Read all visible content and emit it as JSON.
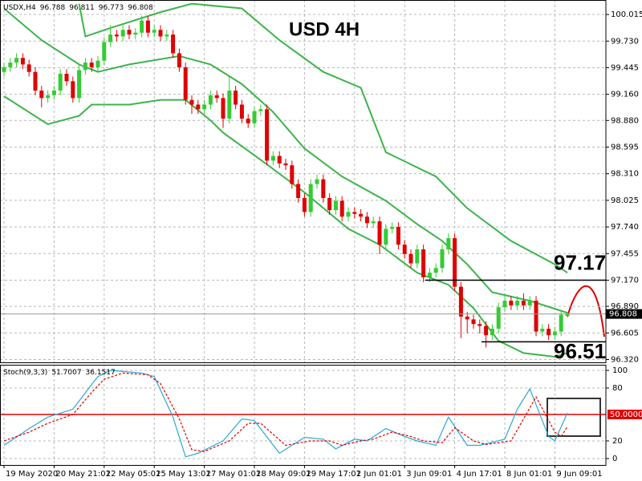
{
  "chart_data": [
    {
      "type": "candlestick",
      "title": "USD 4H",
      "symbol": "USDX,H4",
      "open": [
        99.4,
        99.45,
        99.5,
        99.55,
        99.48,
        99.4,
        99.2,
        99.12,
        99.15,
        99.2,
        99.38,
        99.3,
        99.12,
        99.42,
        99.5,
        99.45,
        99.52,
        99.72,
        99.8,
        99.78,
        99.85,
        99.8,
        99.82,
        99.95,
        99.82,
        99.85,
        99.78,
        99.8,
        99.6,
        99.45,
        99.1,
        99.05,
        99.0,
        99.05,
        99.15,
        99.12,
        98.9,
        99.2,
        99.05,
        98.9,
        98.85,
        98.98,
        99.0,
        98.45,
        98.5,
        98.42,
        98.4,
        98.2,
        98.05,
        97.9,
        98.2,
        98.25,
        98.05,
        97.92,
        98.02,
        97.85,
        97.9,
        97.88,
        97.85,
        97.78,
        97.8,
        97.55,
        97.72,
        97.74,
        97.55,
        97.45,
        97.35,
        97.5,
        97.2,
        97.25,
        97.3,
        97.5,
        97.62,
        97.1,
        96.78,
        96.75,
        96.7,
        96.68,
        96.58,
        96.65,
        96.88,
        96.95,
        96.9,
        96.95,
        96.9,
        96.95,
        96.62,
        96.65,
        96.58,
        96.62,
        96.788
      ],
      "high": [
        99.5,
        99.55,
        99.6,
        99.6,
        99.53,
        99.45,
        99.25,
        99.2,
        99.25,
        99.43,
        99.43,
        99.35,
        99.47,
        99.55,
        99.55,
        99.57,
        99.77,
        99.9,
        99.85,
        99.9,
        99.9,
        99.87,
        100.0,
        100.0,
        99.9,
        99.9,
        99.85,
        99.85,
        99.65,
        99.5,
        99.15,
        99.1,
        99.1,
        99.2,
        99.2,
        99.17,
        99.35,
        99.25,
        99.1,
        98.95,
        99.03,
        99.05,
        99.05,
        98.55,
        98.55,
        98.47,
        98.45,
        98.25,
        98.1,
        98.25,
        98.3,
        98.3,
        98.1,
        98.07,
        98.07,
        97.95,
        97.95,
        97.93,
        97.9,
        97.85,
        97.85,
        97.77,
        97.79,
        97.79,
        97.6,
        97.5,
        97.55,
        97.55,
        97.3,
        97.35,
        97.55,
        97.67,
        97.67,
        97.15,
        96.83,
        96.8,
        96.75,
        96.73,
        96.7,
        96.93,
        97.03,
        97.0,
        97.0,
        97.03,
        97.0,
        97.0,
        96.7,
        96.7,
        96.67,
        96.85,
        96.811
      ],
      "low": [
        99.35,
        99.4,
        99.45,
        99.43,
        99.35,
        99.15,
        99.02,
        99.07,
        99.1,
        99.15,
        99.25,
        99.07,
        99.07,
        99.37,
        99.4,
        99.4,
        99.47,
        99.67,
        99.73,
        99.73,
        99.75,
        99.75,
        99.77,
        99.77,
        99.77,
        99.73,
        99.73,
        99.55,
        99.4,
        99.05,
        98.95,
        98.95,
        98.95,
        99.0,
        99.07,
        98.8,
        98.85,
        99.0,
        98.85,
        98.8,
        98.8,
        98.93,
        98.4,
        98.4,
        98.37,
        98.35,
        98.15,
        98.0,
        97.85,
        97.85,
        98.15,
        98.0,
        97.87,
        97.87,
        97.8,
        97.8,
        97.83,
        97.8,
        97.73,
        97.73,
        97.45,
        97.5,
        97.67,
        97.5,
        97.4,
        97.3,
        97.3,
        97.15,
        97.15,
        97.2,
        97.25,
        97.45,
        97.05,
        96.55,
        96.6,
        96.65,
        96.6,
        96.45,
        96.53,
        96.6,
        96.83,
        96.85,
        96.85,
        96.85,
        96.85,
        96.57,
        96.57,
        96.53,
        96.53,
        96.57,
        96.773
      ],
      "close": [
        99.45,
        99.5,
        99.55,
        99.48,
        99.4,
        99.2,
        99.12,
        99.15,
        99.2,
        99.38,
        99.3,
        99.12,
        99.42,
        99.5,
        99.45,
        99.52,
        99.72,
        99.8,
        99.78,
        99.85,
        99.8,
        99.82,
        99.95,
        99.82,
        99.85,
        99.78,
        99.8,
        99.6,
        99.45,
        99.1,
        99.05,
        99.0,
        99.05,
        99.15,
        99.12,
        98.9,
        99.2,
        99.05,
        98.9,
        98.85,
        98.98,
        99.0,
        98.45,
        98.5,
        98.42,
        98.4,
        98.2,
        98.05,
        97.9,
        98.2,
        98.25,
        98.05,
        97.92,
        98.02,
        97.85,
        97.9,
        97.88,
        97.85,
        97.78,
        97.8,
        97.55,
        97.72,
        97.74,
        97.55,
        97.45,
        97.35,
        97.5,
        97.2,
        97.25,
        97.3,
        97.5,
        97.62,
        97.1,
        96.78,
        96.75,
        96.7,
        96.68,
        96.58,
        96.65,
        96.88,
        96.95,
        96.9,
        96.95,
        96.9,
        96.95,
        96.62,
        96.65,
        96.58,
        96.62,
        96.8,
        96.808
      ],
      "up_color": "#33cc33",
      "down_color": "#e00000",
      "bands": [
        {
          "color": "#3cb44b",
          "x": [
            12,
            13,
            17,
            25,
            30,
            38,
            44,
            51,
            57,
            61,
            69,
            74,
            81,
            88,
            90
          ],
          "values": [
            100.13,
            99.78,
            99.87,
            100.04,
            100.13,
            100.08,
            99.74,
            99.4,
            99.23,
            98.54,
            98.28,
            97.94,
            97.59,
            97.34,
            97.25
          ]
        },
        {
          "color": "#3cb44b",
          "x": [
            0,
            6,
            12,
            15,
            20,
            28,
            33,
            38,
            43,
            48,
            54,
            61,
            66,
            70,
            74,
            78,
            84,
            90
          ],
          "values": [
            100.08,
            99.74,
            99.48,
            99.4,
            99.48,
            99.57,
            99.48,
            99.27,
            98.97,
            98.58,
            98.28,
            98.02,
            97.77,
            97.59,
            97.34,
            97.04,
            96.95,
            96.82
          ]
        },
        {
          "color": "#3cb44b",
          "x": [
            0,
            7,
            12,
            14,
            20,
            25,
            29,
            33,
            35,
            42,
            48,
            55,
            60,
            66,
            71,
            75,
            79,
            83,
            88,
            90
          ],
          "values": [
            99.14,
            98.84,
            98.93,
            99.05,
            99.05,
            99.1,
            99.1,
            98.88,
            98.75,
            98.41,
            98.11,
            97.72,
            97.55,
            97.25,
            97.12,
            96.87,
            96.52,
            96.39,
            96.35,
            96.39
          ]
        }
      ],
      "levels": [
        97.17,
        96.51
      ],
      "xlim": [
        -0.64,
        96.15
      ],
      "ylim": [
        96.29,
        100.17
      ],
      "yticks": [
        100.015,
        {
          "value": 99.73,
          "label": "99.730"
        },
        99.445,
        {
          "value": 99.16,
          "label": "99.160"
        },
        {
          "value": 98.88,
          "label": "98.880"
        },
        98.595,
        {
          "value": 98.31,
          "label": "98.310"
        },
        {
          "value": 98.025,
          "label": "98.025"
        },
        {
          "value": 97.74,
          "label": "97.740"
        },
        97.455,
        {
          "value": 97.17,
          "label": "97.170"
        },
        {
          "value": 96.89,
          "label": "96.890"
        },
        96.605,
        {
          "value": 96.32,
          "label": "96.320"
        }
      ],
      "xticks": [
        {
          "value": 0,
          "label": "19 May 2020"
        },
        {
          "value": 8,
          "label": "20 May 21:01"
        },
        {
          "value": 16,
          "label": "22 May 05:01"
        },
        {
          "value": 24,
          "label": "25 May 13:01"
        },
        {
          "value": 32,
          "label": "27 May 01:01"
        },
        {
          "value": 40,
          "label": "28 May 09:01"
        },
        {
          "value": 48,
          "label": "29 May 17:01"
        },
        {
          "value": 56,
          "label": "2 Jun 01:01"
        },
        {
          "value": 64,
          "label": "3 Jun 09:01"
        },
        {
          "value": 72,
          "label": "4 Jun 17:01"
        },
        {
          "value": 80,
          "label": "8 Jun 01:01"
        },
        {
          "value": 88,
          "label": "9 Jun 09:01"
        }
      ],
      "grid": true
    },
    {
      "type": "line",
      "title": "Stoch(9,3,3)",
      "series": [
        {
          "color": "#2aa8d8",
          "x": [
            0,
            4,
            7,
            11,
            14,
            15,
            17,
            22,
            24,
            27,
            29,
            31,
            35,
            38,
            40,
            44,
            48,
            51,
            53,
            56,
            58,
            61,
            64,
            66,
            69,
            71,
            74,
            76,
            80,
            82,
            84,
            87,
            88,
            90
          ],
          "values": [
            15,
            34,
            47,
            56,
            84,
            93,
            100,
            97,
            93,
            47,
            2,
            6,
            20,
            45,
            43,
            6,
            24,
            22,
            11,
            22,
            20,
            34,
            25,
            20,
            15,
            47,
            15,
            15,
            22,
            56,
            79,
            25,
            20,
            51.7007
          ]
        },
        {
          "color": "#e00000",
          "dash": true,
          "x": [
            0,
            4,
            7,
            11,
            14,
            16,
            19,
            23,
            25,
            28,
            30,
            32,
            36,
            39,
            41,
            45,
            49,
            52,
            54,
            57,
            59,
            62,
            65,
            67,
            70,
            72,
            75,
            77,
            81,
            83,
            85,
            88,
            89,
            90
          ],
          "values": [
            20,
            30,
            40,
            50,
            75,
            90,
            97,
            95,
            85,
            45,
            10,
            8,
            20,
            40,
            40,
            15,
            20,
            20,
            15,
            20,
            22,
            30,
            25,
            20,
            18,
            35,
            20,
            16,
            20,
            45,
            70,
            30,
            25,
            36.1517
          ]
        }
      ],
      "level": {
        "value": 50,
        "label": "50.0000",
        "color": "#e00000"
      },
      "xlim": [
        -0.64,
        96.15
      ],
      "ylim": [
        -7.3,
        106.4
      ],
      "yticks": [
        100,
        80,
        20,
        0
      ],
      "grid": true
    }
  ]
}
